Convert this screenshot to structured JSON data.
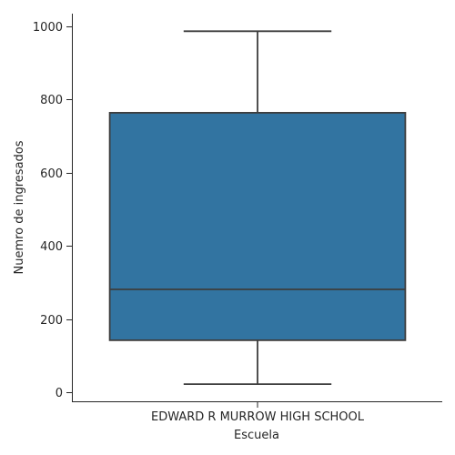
{
  "chart_data": {
    "type": "boxplot",
    "title": "",
    "xlabel": "Escuela",
    "ylabel": "Nuemro de ingresados",
    "categories": [
      "EDWARD R MURROW HIGH SCHOOL"
    ],
    "boxes": [
      {
        "category": "EDWARD R MURROW HIGH SCHOOL",
        "whisker_low": 22,
        "q1": 142,
        "median": 281,
        "q3": 764,
        "whisker_high": 987
      }
    ],
    "ylim": [
      -25,
      1035
    ],
    "yticks": [
      0,
      200,
      400,
      600,
      800,
      1000
    ],
    "grid": false,
    "box_color": "#3274a1",
    "line_color": "#3d3d3d"
  }
}
